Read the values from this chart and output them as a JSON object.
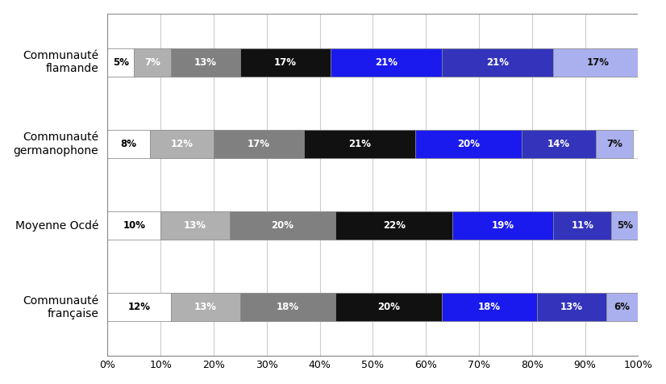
{
  "categories": [
    "Communauté\nflamande",
    "Communauté\ngermanophone",
    "Moyenne Ocdé",
    "Communauté\nfrançaise"
  ],
  "segments": [
    [
      5,
      7,
      13,
      17,
      21,
      21,
      17
    ],
    [
      8,
      12,
      17,
      21,
      20,
      14,
      7
    ],
    [
      10,
      13,
      20,
      22,
      19,
      11,
      5
    ],
    [
      12,
      13,
      18,
      20,
      18,
      13,
      6
    ]
  ],
  "colors": [
    "#ffffff",
    "#b0b0b0",
    "#808080",
    "#111111",
    "#1a1aee",
    "#3333bb",
    "#aab0ee"
  ],
  "edge_color": "#888888",
  "text_colors": [
    "#000000",
    "#ffffff",
    "#ffffff",
    "#ffffff",
    "#ffffff",
    "#ffffff",
    "#111111"
  ],
  "bar_height": 0.35,
  "xlim": [
    0,
    100
  ],
  "xticks": [
    0,
    10,
    20,
    30,
    40,
    50,
    60,
    70,
    80,
    90,
    100
  ],
  "xtick_labels": [
    "0%",
    "10%",
    "20%",
    "30%",
    "40%",
    "50%",
    "60%",
    "70%",
    "80%",
    "90%",
    "100%"
  ],
  "background_color": "#ffffff",
  "grid_color": "#cccccc",
  "text_fontsize": 8.5,
  "label_fontsize": 10
}
